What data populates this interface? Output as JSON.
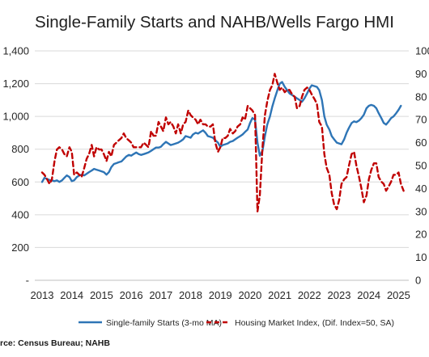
{
  "chart_data": {
    "type": "line",
    "title": "Single-Family Starts and NAHB/Wells Fargo HMI",
    "x_tick_labels": [
      "2013",
      "2014",
      "2015",
      "2016",
      "2017",
      "2018",
      "2019",
      "2020",
      "2021",
      "2022",
      "2023",
      "2024",
      "2025"
    ],
    "y_left_tick_labels": [
      "1,400",
      "1,200",
      "1,000",
      "800",
      "600",
      "400",
      "200",
      "-"
    ],
    "y_right_tick_labels": [
      "100",
      "90",
      "80",
      "70",
      "60",
      "50",
      "40",
      "30",
      "20",
      "10",
      "0"
    ],
    "y_left_range": [
      0,
      1400
    ],
    "y_right_range": [
      0,
      100
    ],
    "x_range": [
      2013.0,
      2025.08
    ],
    "grid": true,
    "legend_position": "bottom",
    "source": "rce: Census Bureau; NAHB",
    "series": [
      {
        "name": "Single-family Starts (3-mo MA)",
        "axis": "left",
        "color": "#2e75b6",
        "dash": "solid",
        "points": [
          [
            2013.0,
            600
          ],
          [
            2013.08,
            625
          ],
          [
            2013.17,
            618
          ],
          [
            2013.25,
            612
          ],
          [
            2013.33,
            610
          ],
          [
            2013.42,
            605
          ],
          [
            2013.5,
            610
          ],
          [
            2013.58,
            600
          ],
          [
            2013.67,
            610
          ],
          [
            2013.75,
            625
          ],
          [
            2013.83,
            640
          ],
          [
            2013.92,
            630
          ],
          [
            2014.0,
            605
          ],
          [
            2014.08,
            610
          ],
          [
            2014.17,
            630
          ],
          [
            2014.25,
            640
          ],
          [
            2014.33,
            645
          ],
          [
            2014.42,
            640
          ],
          [
            2014.5,
            650
          ],
          [
            2014.58,
            660
          ],
          [
            2014.67,
            670
          ],
          [
            2014.75,
            680
          ],
          [
            2014.83,
            675
          ],
          [
            2014.92,
            670
          ],
          [
            2015.0,
            665
          ],
          [
            2015.08,
            660
          ],
          [
            2015.17,
            645
          ],
          [
            2015.25,
            660
          ],
          [
            2015.33,
            690
          ],
          [
            2015.42,
            710
          ],
          [
            2015.5,
            715
          ],
          [
            2015.58,
            720
          ],
          [
            2015.67,
            725
          ],
          [
            2015.75,
            740
          ],
          [
            2015.83,
            755
          ],
          [
            2015.92,
            765
          ],
          [
            2016.0,
            760
          ],
          [
            2016.08,
            770
          ],
          [
            2016.17,
            780
          ],
          [
            2016.25,
            770
          ],
          [
            2016.33,
            765
          ],
          [
            2016.42,
            770
          ],
          [
            2016.5,
            775
          ],
          [
            2016.58,
            780
          ],
          [
            2016.67,
            790
          ],
          [
            2016.75,
            800
          ],
          [
            2016.83,
            810
          ],
          [
            2016.92,
            810
          ],
          [
            2017.0,
            815
          ],
          [
            2017.08,
            830
          ],
          [
            2017.17,
            845
          ],
          [
            2017.25,
            835
          ],
          [
            2017.33,
            825
          ],
          [
            2017.42,
            830
          ],
          [
            2017.5,
            835
          ],
          [
            2017.58,
            840
          ],
          [
            2017.67,
            850
          ],
          [
            2017.75,
            860
          ],
          [
            2017.83,
            880
          ],
          [
            2017.92,
            875
          ],
          [
            2018.0,
            870
          ],
          [
            2018.08,
            890
          ],
          [
            2018.17,
            900
          ],
          [
            2018.25,
            895
          ],
          [
            2018.33,
            905
          ],
          [
            2018.42,
            915
          ],
          [
            2018.5,
            900
          ],
          [
            2018.58,
            880
          ],
          [
            2018.67,
            875
          ],
          [
            2018.75,
            870
          ],
          [
            2018.83,
            855
          ],
          [
            2018.92,
            840
          ],
          [
            2019.0,
            815
          ],
          [
            2019.08,
            825
          ],
          [
            2019.17,
            830
          ],
          [
            2019.25,
            835
          ],
          [
            2019.33,
            845
          ],
          [
            2019.42,
            850
          ],
          [
            2019.5,
            860
          ],
          [
            2019.58,
            870
          ],
          [
            2019.67,
            880
          ],
          [
            2019.75,
            890
          ],
          [
            2019.83,
            905
          ],
          [
            2019.92,
            920
          ],
          [
            2020.0,
            960
          ],
          [
            2020.08,
            990
          ],
          [
            2020.17,
            980
          ],
          [
            2020.25,
            840
          ],
          [
            2020.33,
            760
          ],
          [
            2020.42,
            790
          ],
          [
            2020.5,
            880
          ],
          [
            2020.58,
            950
          ],
          [
            2020.67,
            1000
          ],
          [
            2020.75,
            1060
          ],
          [
            2020.83,
            1110
          ],
          [
            2020.92,
            1160
          ],
          [
            2021.0,
            1200
          ],
          [
            2021.08,
            1210
          ],
          [
            2021.17,
            1180
          ],
          [
            2021.25,
            1160
          ],
          [
            2021.33,
            1140
          ],
          [
            2021.42,
            1130
          ],
          [
            2021.5,
            1120
          ],
          [
            2021.58,
            1110
          ],
          [
            2021.67,
            1100
          ],
          [
            2021.75,
            1090
          ],
          [
            2021.83,
            1110
          ],
          [
            2021.92,
            1140
          ],
          [
            2022.0,
            1170
          ],
          [
            2022.08,
            1190
          ],
          [
            2022.17,
            1185
          ],
          [
            2022.25,
            1180
          ],
          [
            2022.33,
            1160
          ],
          [
            2022.42,
            1100
          ],
          [
            2022.5,
            1000
          ],
          [
            2022.58,
            950
          ],
          [
            2022.67,
            920
          ],
          [
            2022.75,
            880
          ],
          [
            2022.83,
            860
          ],
          [
            2022.92,
            840
          ],
          [
            2023.0,
            835
          ],
          [
            2023.08,
            830
          ],
          [
            2023.17,
            860
          ],
          [
            2023.25,
            900
          ],
          [
            2023.33,
            930
          ],
          [
            2023.42,
            960
          ],
          [
            2023.5,
            970
          ],
          [
            2023.58,
            965
          ],
          [
            2023.67,
            975
          ],
          [
            2023.75,
            990
          ],
          [
            2023.83,
            1010
          ],
          [
            2023.92,
            1050
          ],
          [
            2024.0,
            1065
          ],
          [
            2024.08,
            1070
          ],
          [
            2024.17,
            1065
          ],
          [
            2024.25,
            1050
          ],
          [
            2024.33,
            1020
          ],
          [
            2024.42,
            990
          ],
          [
            2024.5,
            960
          ],
          [
            2024.58,
            950
          ],
          [
            2024.67,
            970
          ],
          [
            2024.75,
            990
          ],
          [
            2024.83,
            1000
          ],
          [
            2024.92,
            1020
          ],
          [
            2025.0,
            1040
          ],
          [
            2025.08,
            1065
          ]
        ]
      },
      {
        "name": "Housing Market Index, (Dif. Index=50, SA)",
        "axis": "right",
        "color": "#c00000",
        "dash": "dashed",
        "points": [
          [
            2013.0,
            47
          ],
          [
            2013.08,
            46
          ],
          [
            2013.17,
            44
          ],
          [
            2013.25,
            42
          ],
          [
            2013.33,
            44
          ],
          [
            2013.42,
            52
          ],
          [
            2013.5,
            57
          ],
          [
            2013.58,
            58
          ],
          [
            2013.67,
            57
          ],
          [
            2013.75,
            55
          ],
          [
            2013.83,
            54
          ],
          [
            2013.92,
            58
          ],
          [
            2014.0,
            56
          ],
          [
            2014.08,
            46
          ],
          [
            2014.17,
            47
          ],
          [
            2014.25,
            46
          ],
          [
            2014.33,
            45
          ],
          [
            2014.42,
            49
          ],
          [
            2014.5,
            53
          ],
          [
            2014.58,
            55
          ],
          [
            2014.67,
            59
          ],
          [
            2014.75,
            54
          ],
          [
            2014.83,
            58
          ],
          [
            2014.92,
            57
          ],
          [
            2015.0,
            57
          ],
          [
            2015.08,
            55
          ],
          [
            2015.17,
            52
          ],
          [
            2015.25,
            56
          ],
          [
            2015.33,
            54
          ],
          [
            2015.42,
            59
          ],
          [
            2015.5,
            60
          ],
          [
            2015.58,
            61
          ],
          [
            2015.67,
            62
          ],
          [
            2015.75,
            64
          ],
          [
            2015.83,
            62
          ],
          [
            2015.92,
            61
          ],
          [
            2016.0,
            60
          ],
          [
            2016.08,
            58
          ],
          [
            2016.17,
            58
          ],
          [
            2016.25,
            58
          ],
          [
            2016.33,
            58
          ],
          [
            2016.42,
            60
          ],
          [
            2016.5,
            59
          ],
          [
            2016.58,
            58
          ],
          [
            2016.67,
            65
          ],
          [
            2016.75,
            63
          ],
          [
            2016.83,
            63
          ],
          [
            2016.92,
            69
          ],
          [
            2017.0,
            67
          ],
          [
            2017.08,
            65
          ],
          [
            2017.17,
            71
          ],
          [
            2017.25,
            68
          ],
          [
            2017.33,
            69
          ],
          [
            2017.42,
            67
          ],
          [
            2017.5,
            64
          ],
          [
            2017.58,
            68
          ],
          [
            2017.67,
            64
          ],
          [
            2017.75,
            68
          ],
          [
            2017.83,
            69
          ],
          [
            2017.92,
            74
          ],
          [
            2018.0,
            72
          ],
          [
            2018.08,
            71
          ],
          [
            2018.17,
            70
          ],
          [
            2018.25,
            68
          ],
          [
            2018.33,
            70
          ],
          [
            2018.42,
            68
          ],
          [
            2018.5,
            68
          ],
          [
            2018.58,
            67
          ],
          [
            2018.67,
            67
          ],
          [
            2018.75,
            68
          ],
          [
            2018.83,
            60
          ],
          [
            2018.92,
            56
          ],
          [
            2019.0,
            58
          ],
          [
            2019.08,
            62
          ],
          [
            2019.17,
            62
          ],
          [
            2019.25,
            63
          ],
          [
            2019.33,
            66
          ],
          [
            2019.42,
            64
          ],
          [
            2019.5,
            65
          ],
          [
            2019.58,
            67
          ],
          [
            2019.67,
            68
          ],
          [
            2019.75,
            71
          ],
          [
            2019.83,
            70
          ],
          [
            2019.92,
            76
          ],
          [
            2020.0,
            75
          ],
          [
            2020.08,
            74
          ],
          [
            2020.17,
            72
          ],
          [
            2020.25,
            30
          ],
          [
            2020.33,
            37
          ],
          [
            2020.42,
            58
          ],
          [
            2020.5,
            72
          ],
          [
            2020.58,
            78
          ],
          [
            2020.67,
            83
          ],
          [
            2020.75,
            85
          ],
          [
            2020.83,
            90
          ],
          [
            2020.92,
            86
          ],
          [
            2021.0,
            83
          ],
          [
            2021.08,
            84
          ],
          [
            2021.17,
            82
          ],
          [
            2021.25,
            83
          ],
          [
            2021.33,
            83
          ],
          [
            2021.42,
            81
          ],
          [
            2021.5,
            80
          ],
          [
            2021.58,
            75
          ],
          [
            2021.67,
            76
          ],
          [
            2021.75,
            80
          ],
          [
            2021.83,
            83
          ],
          [
            2021.92,
            84
          ],
          [
            2022.0,
            83
          ],
          [
            2022.08,
            81
          ],
          [
            2022.17,
            79
          ],
          [
            2022.25,
            77
          ],
          [
            2022.33,
            69
          ],
          [
            2022.42,
            67
          ],
          [
            2022.5,
            55
          ],
          [
            2022.58,
            49
          ],
          [
            2022.67,
            46
          ],
          [
            2022.75,
            38
          ],
          [
            2022.83,
            33
          ],
          [
            2022.92,
            31
          ],
          [
            2023.0,
            35
          ],
          [
            2023.08,
            42
          ],
          [
            2023.17,
            44
          ],
          [
            2023.25,
            45
          ],
          [
            2023.33,
            50
          ],
          [
            2023.42,
            55
          ],
          [
            2023.5,
            56
          ],
          [
            2023.58,
            50
          ],
          [
            2023.67,
            45
          ],
          [
            2023.75,
            40
          ],
          [
            2023.83,
            34
          ],
          [
            2023.92,
            37
          ],
          [
            2024.0,
            44
          ],
          [
            2024.08,
            48
          ],
          [
            2024.17,
            51
          ],
          [
            2024.25,
            51
          ],
          [
            2024.33,
            45
          ],
          [
            2024.42,
            43
          ],
          [
            2024.5,
            42
          ],
          [
            2024.58,
            39
          ],
          [
            2024.67,
            41
          ],
          [
            2024.75,
            43
          ],
          [
            2024.83,
            46
          ],
          [
            2024.92,
            46
          ],
          [
            2025.0,
            47
          ],
          [
            2025.08,
            42
          ],
          [
            2025.17,
            39
          ]
        ]
      }
    ]
  }
}
